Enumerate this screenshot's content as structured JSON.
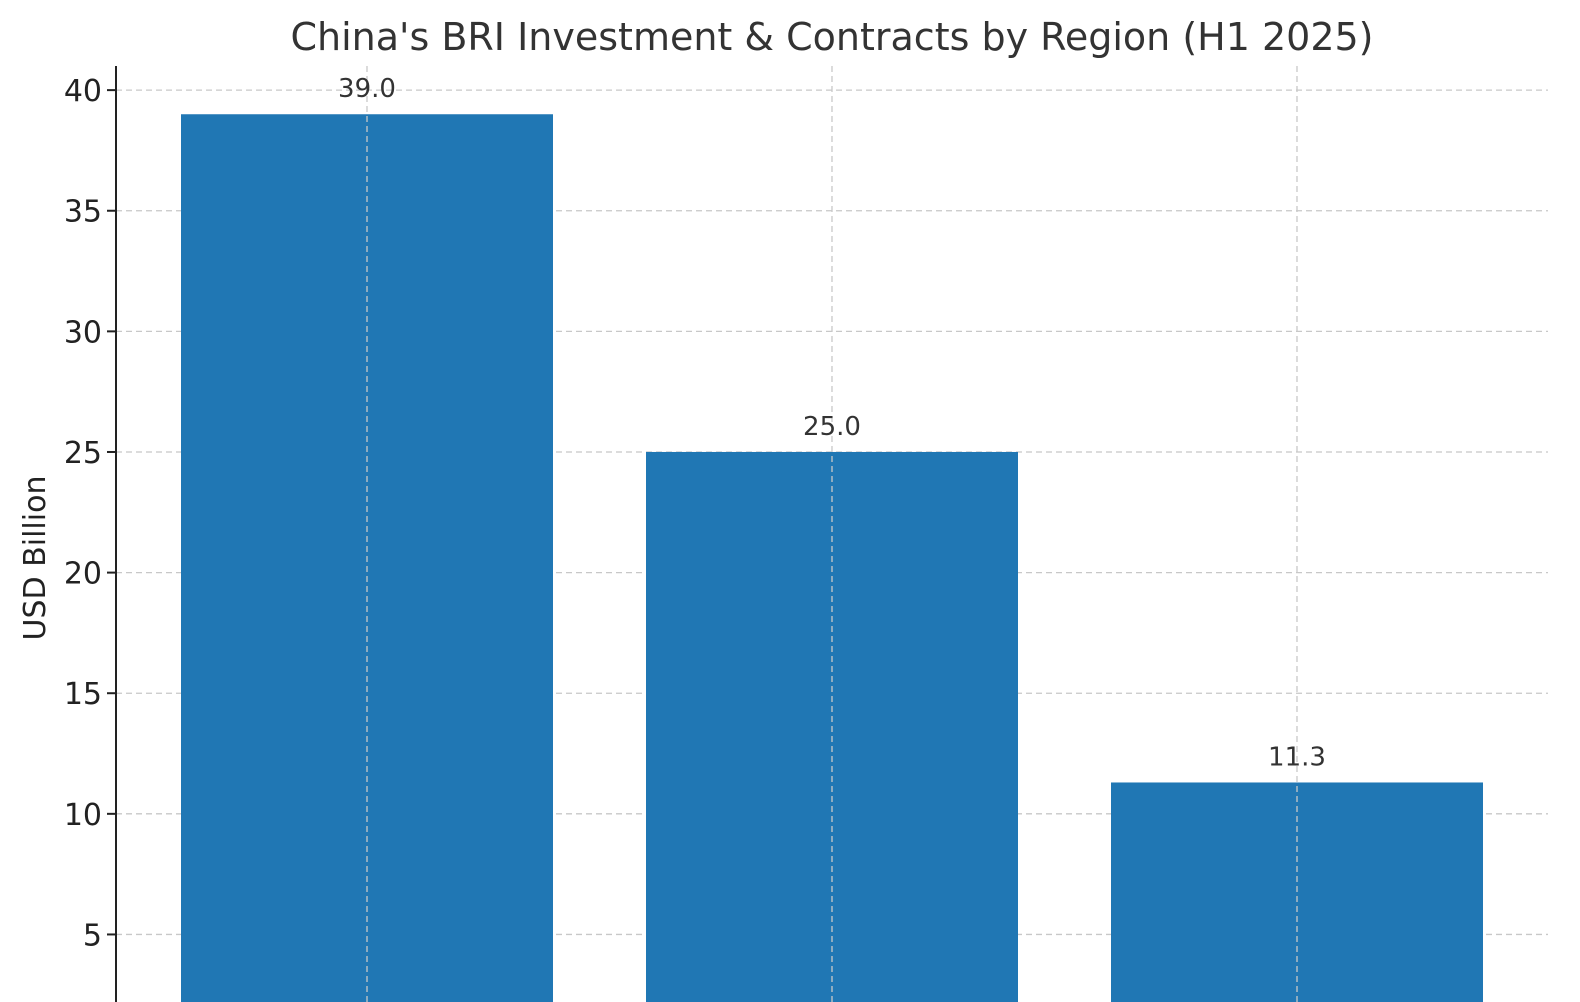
{
  "chart_data": {
    "type": "bar",
    "title": "China's BRI Investment & Contracts by Region (H1 2025)",
    "xlabel": "",
    "ylabel": "USD Billion",
    "values": [
      39.0,
      25.0,
      11.3
    ],
    "value_labels": [
      "39.0",
      "25.0",
      "11.3"
    ],
    "ylim": [
      2.2,
      41
    ],
    "yticks": [
      5,
      10,
      15,
      20,
      25,
      30,
      35,
      40
    ],
    "grid": true,
    "bar_color": "#2077b4"
  }
}
